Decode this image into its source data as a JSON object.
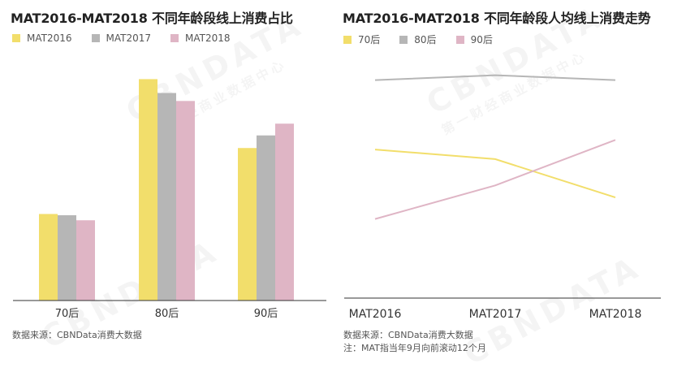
{
  "watermark": {
    "brand": "CBNDATA",
    "sub": "第一财经商业数据中心"
  },
  "colors": {
    "MAT2016": "#f2de6b",
    "MAT2017": "#b6b6b6",
    "MAT2018": "#dfb5c5",
    "70后": "#f2de6b",
    "80后": "#b6b6b6",
    "90后": "#dfb5c5"
  },
  "chart_data": [
    {
      "type": "bar",
      "title": "MAT2016-MAT2018 不同年龄段线上消费占比",
      "categories": [
        "70后",
        "80后",
        "90后"
      ],
      "series": [
        {
          "name": "MAT2016",
          "values": [
            0.206,
            0.527,
            0.363
          ]
        },
        {
          "name": "MAT2017",
          "values": [
            0.203,
            0.494,
            0.393
          ]
        },
        {
          "name": "MAT2018",
          "values": [
            0.191,
            0.475,
            0.421
          ]
        }
      ],
      "ylim": [
        0,
        0.58
      ],
      "legend": "top-left",
      "source": "数据来源：CBNData消费大数据"
    },
    {
      "type": "line",
      "title": "MAT2016-MAT2018 不同年龄段人均线上消费走势",
      "x": [
        "MAT2016",
        "MAT2017",
        "MAT2018"
      ],
      "series": [
        {
          "name": "70后",
          "values": [
            0.62,
            0.58,
            0.42
          ]
        },
        {
          "name": "80后",
          "values": [
            0.91,
            0.93,
            0.91
          ]
        },
        {
          "name": "90后",
          "values": [
            0.33,
            0.47,
            0.66
          ]
        }
      ],
      "ylim": [
        0,
        1
      ],
      "legend": "top-left",
      "source": "数据来源：CBNData消费大数据",
      "note": "注：MAT指当年9月向前滚动12个月"
    }
  ]
}
